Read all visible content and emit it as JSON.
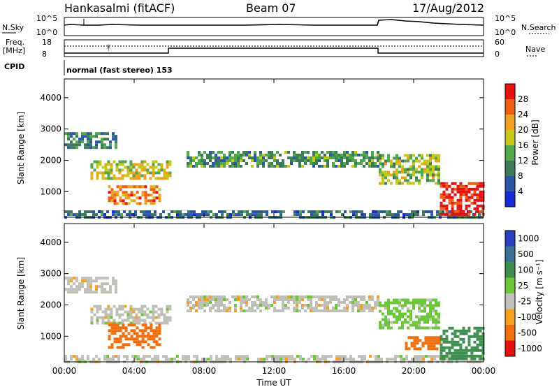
{
  "header": {
    "station": "Hankasalmi (fitACF)",
    "beam": "Beam 07",
    "date": "17/Aug/2012"
  },
  "summary_panels": {
    "nsky_label": "N.Sky",
    "nsky_ticks": [
      "10^5",
      "10^0"
    ],
    "nsearch_label": "N.Search",
    "nsearch_ticks": [
      "10^5",
      "10^0"
    ],
    "freq_label": "Freq.",
    "freq_unit": "[MHz]",
    "freq_ticks": [
      "18",
      "8"
    ],
    "nave_label": "Nave",
    "nave_ticks": [
      "60",
      "0"
    ],
    "cpid_label": "CPID",
    "cpid_value": "normal (fast stereo) 153"
  },
  "colors": {
    "power_scale": [
      "#1a2bd6",
      "#2d56a8",
      "#3c7a5a",
      "#4fa84a",
      "#c8c81a",
      "#f0a020",
      "#f06010",
      "#e81010"
    ],
    "velocity_scale": [
      "#2840c0",
      "#3a6f98",
      "#3f9050",
      "#6cc83a",
      "#c0c0b8",
      "#f5a020",
      "#f07010",
      "#e81010"
    ],
    "frame": "#000000",
    "background": "#ffffff"
  },
  "chart_data": [
    {
      "type": "heatmap",
      "name": "power-panel",
      "ylabel": "Slant Range [km]",
      "ylim": [
        180,
        4600
      ],
      "y_ticks": [
        "1000",
        "2000",
        "3000",
        "4000"
      ],
      "xlim_hours": [
        0,
        24
      ],
      "colorbar_label": "Power [dB]",
      "colorbar_ticks": [
        "4",
        "8",
        "12",
        "16",
        "20",
        "24",
        "28"
      ],
      "colorbar_range": [
        0,
        32
      ],
      "echo_regions": [
        {
          "label": "early-upper",
          "t": [
            0.0,
            3.0
          ],
          "r": [
            2450,
            2900
          ],
          "value": 10
        },
        {
          "label": "evening-sheet",
          "t": [
            1.5,
            6.0
          ],
          "r": [
            1400,
            2000
          ],
          "value": 18
        },
        {
          "label": "evening-lower",
          "t": [
            2.5,
            5.5
          ],
          "r": [
            600,
            1200
          ],
          "value": 24
        },
        {
          "label": "ground-scatter",
          "t": [
            0.0,
            24.0
          ],
          "r": [
            200,
            400
          ],
          "value": 8
        },
        {
          "label": "midnight-band",
          "t": [
            7.0,
            18.0
          ],
          "r": [
            1800,
            2300
          ],
          "value": 12
        },
        {
          "label": "morning-band",
          "t": [
            18.0,
            21.5
          ],
          "r": [
            1300,
            2200
          ],
          "value": 16
        },
        {
          "label": "morning-strong",
          "t": [
            21.5,
            24.0
          ],
          "r": [
            250,
            1300
          ],
          "value": 30
        }
      ]
    },
    {
      "type": "heatmap",
      "name": "velocity-panel",
      "ylabel": "Slant Range [km]",
      "ylim": [
        180,
        4600
      ],
      "y_ticks": [
        "1000",
        "2000",
        "3000",
        "4000"
      ],
      "xlim_hours": [
        0,
        24
      ],
      "xlabel": "Time UT",
      "x_ticks": [
        "00:00",
        "04:00",
        "08:00",
        "12:00",
        "16:00",
        "20:00",
        "00:00"
      ],
      "colorbar_label": "Velocity [m s⁻¹]",
      "colorbar_ticks": [
        "1000",
        "500",
        "100",
        "25",
        "-25",
        "-100",
        "-500",
        "-1000"
      ],
      "echo_regions": [
        {
          "label": "early-upper",
          "t": [
            0.0,
            3.0
          ],
          "r": [
            2450,
            2900
          ],
          "value": 0
        },
        {
          "label": "evening-sheet",
          "t": [
            1.5,
            6.0
          ],
          "r": [
            1400,
            2000
          ],
          "value": 0
        },
        {
          "label": "evening-flow",
          "t": [
            2.5,
            5.5
          ],
          "r": [
            600,
            1400
          ],
          "value": -300
        },
        {
          "label": "ground-scatter",
          "t": [
            0.0,
            24.0
          ],
          "r": [
            200,
            400
          ],
          "value": 0
        },
        {
          "label": "midnight-band",
          "t": [
            7.0,
            18.0
          ],
          "r": [
            1800,
            2300
          ],
          "value": 0
        },
        {
          "label": "morning-band",
          "t": [
            18.0,
            21.5
          ],
          "r": [
            1300,
            2200
          ],
          "value": 50
        },
        {
          "label": "morning-lower",
          "t": [
            19.5,
            21.5
          ],
          "r": [
            600,
            1000
          ],
          "value": -250
        },
        {
          "label": "morning-strong",
          "t": [
            21.5,
            24.0
          ],
          "r": [
            250,
            1300
          ],
          "value": 200
        }
      ]
    }
  ]
}
